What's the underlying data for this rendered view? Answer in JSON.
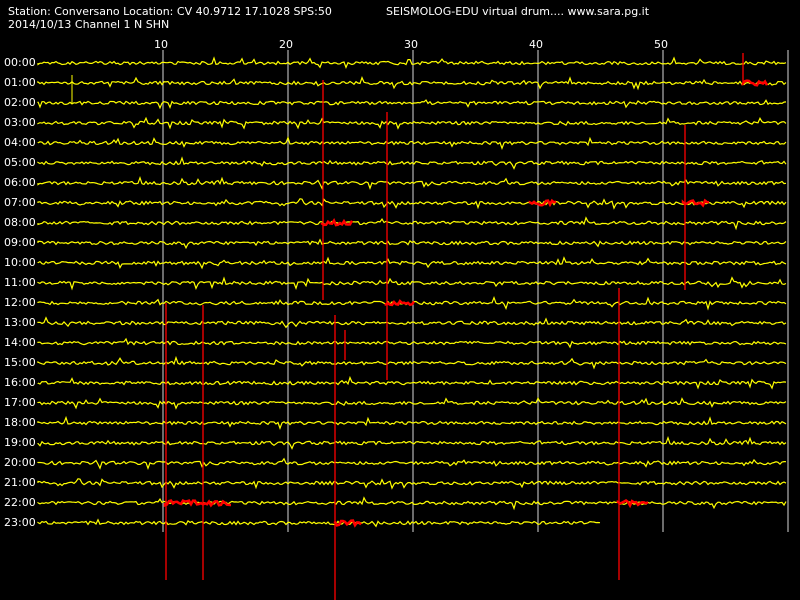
{
  "header": {
    "station_line": "Station: Conversano Location: CV 40.9712 17.1028 SPS:50",
    "date_line": "2014/10/13  Channel 1 N SHN",
    "title": "SEISMOLOG-EDU virtual drum....  www.sara.pg.it"
  },
  "minute_labels": [
    "10",
    "20",
    "30",
    "40",
    "50"
  ],
  "hour_labels": [
    "00:00",
    "01:00",
    "02:00",
    "03:00",
    "04:00",
    "05:00",
    "06:00",
    "07:00",
    "08:00",
    "09:00",
    "10:00",
    "11:00",
    "12:00",
    "13:00",
    "14:00",
    "15:00",
    "16:00",
    "17:00",
    "18:00",
    "19:00",
    "20:00",
    "21:00",
    "22:00",
    "23:00"
  ],
  "colors": {
    "background": "#000000",
    "trace": "#ffff00",
    "event": "#ff0000",
    "grid": "#ffffff",
    "text": "#ffffff"
  }
}
